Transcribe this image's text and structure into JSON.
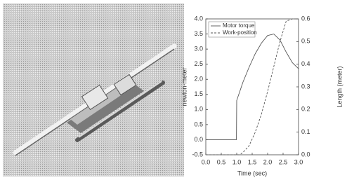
{
  "chart_data": {
    "type": "line",
    "xlabel": "Time (sec)",
    "ylabel": "newton-meter",
    "y2label": "Length (meter)",
    "x": [
      0,
      0.5,
      0.99,
      1.0,
      1.1,
      1.2,
      1.4,
      1.6,
      1.8,
      2.0,
      2.2,
      2.4,
      2.6,
      2.8,
      3.0
    ],
    "series": [
      {
        "name": "Motor torque",
        "color": "#555555",
        "dash": "solid",
        "values": [
          0,
          0,
          0,
          1.3,
          1.6,
          1.9,
          2.4,
          2.85,
          3.2,
          3.45,
          3.5,
          3.3,
          2.9,
          2.55,
          2.35
        ]
      },
      {
        "name": "Work-position",
        "color": "#555555",
        "dash": "dashed",
        "axis": "y2",
        "values": [
          0,
          0,
          0,
          0,
          0,
          0.01,
          0.04,
          0.1,
          0.18,
          0.28,
          0.39,
          0.5,
          0.59,
          0.6,
          0.6
        ]
      }
    ],
    "xlim": [
      0,
      3
    ],
    "xticks": [
      {
        "value": 0,
        "label": "0.0"
      },
      0.5,
      {
        "value": 1,
        "label": "1.0"
      },
      1.5,
      {
        "value": 2,
        "label": "2.0"
      },
      2.5,
      {
        "value": 3,
        "label": "3.0"
      }
    ],
    "ylim": [
      -0.5,
      4
    ],
    "yticks": [
      -0.5,
      {
        "value": 0,
        "label": "0.0"
      },
      0.5,
      {
        "value": 1,
        "label": "1.0"
      },
      1.5,
      {
        "value": 2,
        "label": "2.0"
      },
      2.5,
      {
        "value": 3,
        "label": "3.0"
      },
      3.5,
      {
        "value": 4,
        "label": "4.0"
      }
    ],
    "y2lim": [
      0,
      0.6
    ],
    "y2ticks": [
      {
        "value": 0,
        "label": "0.0"
      },
      0.1,
      0.2,
      0.3,
      0.4,
      0.5,
      0.6
    ],
    "legend": "upper left"
  }
}
